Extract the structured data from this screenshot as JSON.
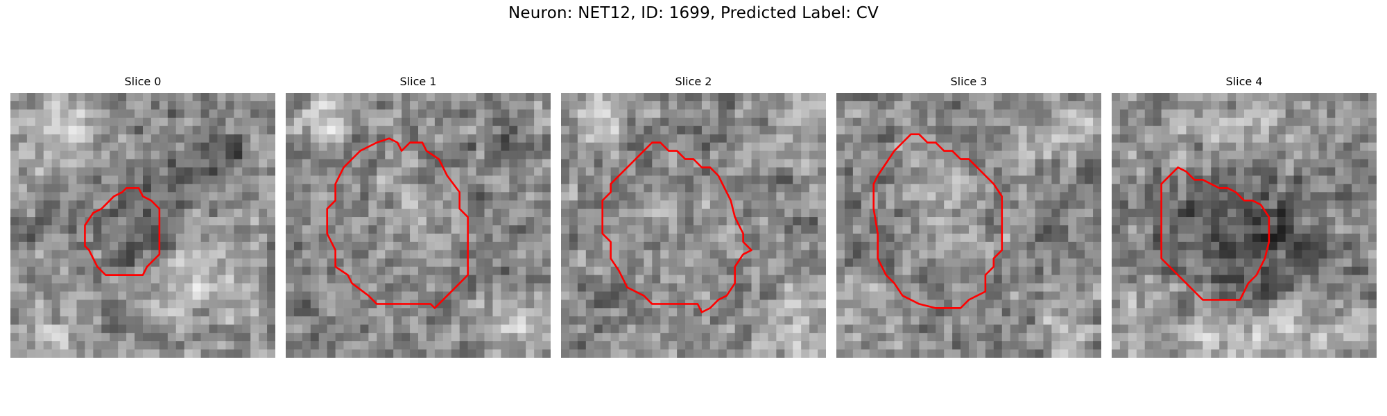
{
  "figure": {
    "title": "Neuron: NET12, ID: 1699, Predicted Label: CV",
    "contour_color": "#ff0000",
    "colormap": "gray"
  },
  "panels": [
    {
      "title": "Slice 0",
      "contour_name": "contour-slice-0"
    },
    {
      "title": "Slice 1",
      "contour_name": "contour-slice-1"
    },
    {
      "title": "Slice 2",
      "contour_name": "contour-slice-2"
    },
    {
      "title": "Slice 3",
      "contour_name": "contour-slice-3"
    },
    {
      "title": "Slice 4",
      "contour_name": "contour-slice-4"
    }
  ]
}
